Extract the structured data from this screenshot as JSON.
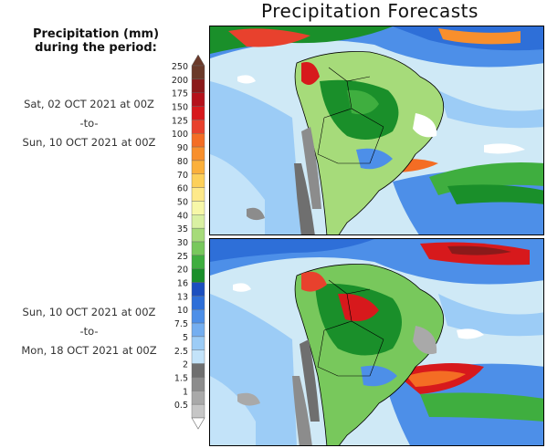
{
  "title": "Precipitation Forecasts",
  "side_heading": {
    "line1": "Precipitation (mm)",
    "line2": "during the period:"
  },
  "period1": {
    "start": "Sat, 02 OCT 2021 at 00Z",
    "sep": "-to-",
    "end": "Sun, 10 OCT 2021 at 00Z"
  },
  "period2": {
    "start": "Sun, 10 OCT 2021 at 00Z",
    "sep": "-to-",
    "end": "Mon, 18 OCT 2021 at 00Z"
  },
  "legend": {
    "levels": [
      {
        "label": "250",
        "color": "#6b3a2a"
      },
      {
        "label": "200",
        "color": "#8b1a1a"
      },
      {
        "label": "175",
        "color": "#b5121b"
      },
      {
        "label": "150",
        "color": "#d7191c"
      },
      {
        "label": "125",
        "color": "#e8412d"
      },
      {
        "label": "100",
        "color": "#f46d24"
      },
      {
        "label": "90",
        "color": "#f88f2c"
      },
      {
        "label": "80",
        "color": "#fbb03b"
      },
      {
        "label": "70",
        "color": "#fdd05a"
      },
      {
        "label": "60",
        "color": "#fee98a"
      },
      {
        "label": "50",
        "color": "#f7f7a8"
      },
      {
        "label": "40",
        "color": "#d9f0a3"
      },
      {
        "label": "35",
        "color": "#a6db7a"
      },
      {
        "label": "30",
        "color": "#78c85c"
      },
      {
        "label": "25",
        "color": "#3fae3f"
      },
      {
        "label": "20",
        "color": "#1a8f2a"
      },
      {
        "label": "16",
        "color": "#1c4fbf"
      },
      {
        "label": "13",
        "color": "#2e6fd8"
      },
      {
        "label": "10",
        "color": "#4d8fe8"
      },
      {
        "label": "7.5",
        "color": "#74aef0"
      },
      {
        "label": "5",
        "color": "#9cccf6"
      },
      {
        "label": "2.5",
        "color": "#c3e3f9"
      },
      {
        "label": "2",
        "color": "#6f6f6f"
      },
      {
        "label": "1.5",
        "color": "#8c8c8c"
      },
      {
        "label": "1",
        "color": "#a9a9a9"
      },
      {
        "label": "0.5",
        "color": "#c6c6c6"
      }
    ]
  }
}
